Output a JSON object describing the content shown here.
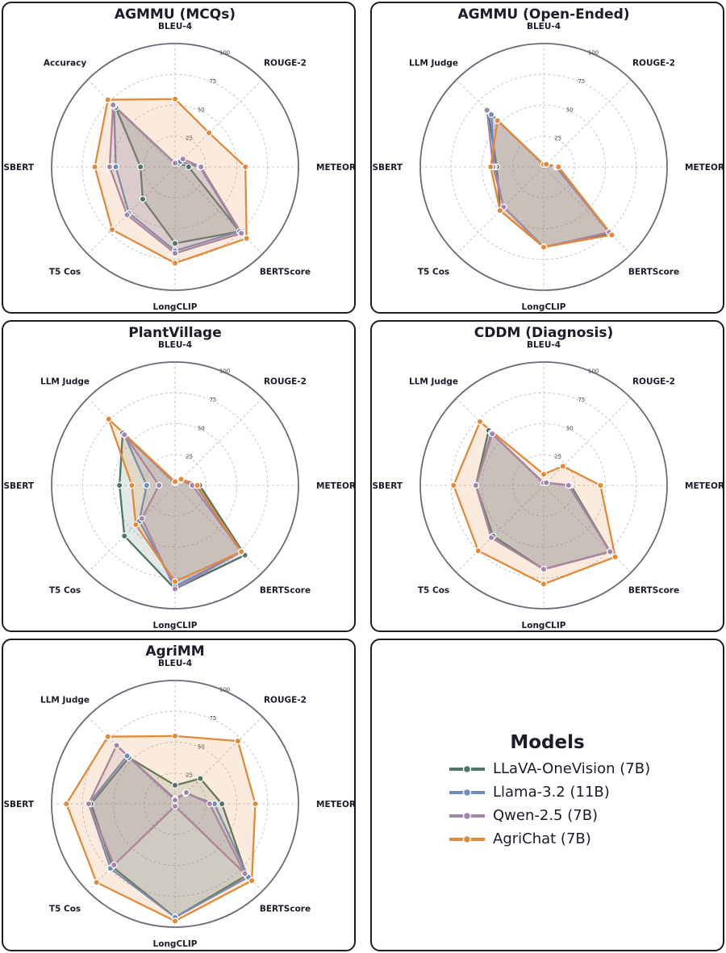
{
  "colors": {
    "LLaVA-OneVision (7B)": "#4e7563",
    "Llama-3.2 (11B)": "#6b8cbf",
    "Qwen-2.5 (7B)": "#a384ad",
    "AgriChat (7B)": "#e08a3c"
  },
  "chart_data": [
    {
      "type": "radar",
      "title": "AGMMU (MCQs)",
      "axes": [
        "BLEU-4",
        "ROUGE-2",
        "METEOR",
        "BERTScore",
        "LongCLIP",
        "T5 Cos",
        "SBERT",
        "Accuracy"
      ],
      "rlim": [
        0,
        100
      ],
      "rticks": [
        "25",
        "50",
        "75",
        "100"
      ],
      "series": [
        {
          "name": "LLaVA-OneVision (7B)",
          "values": [
            3,
            4,
            11,
            74,
            62,
            37,
            28,
            68
          ]
        },
        {
          "name": "Llama-3.2 (11B)",
          "values": [
            3,
            6,
            20,
            74,
            68,
            53,
            48,
            70
          ]
        },
        {
          "name": "Qwen-2.5 (7B)",
          "values": [
            3,
            9,
            21,
            76,
            70,
            55,
            53,
            71
          ]
        },
        {
          "name": "AgriChat (7B)",
          "values": [
            55,
            39,
            57,
            82,
            78,
            72,
            65,
            77
          ]
        }
      ]
    },
    {
      "type": "radar",
      "title": "AGMMU (Open-Ended)",
      "axes": [
        "BLEU-4",
        "ROUGE-2",
        "METEOR",
        "BERTScore",
        "LongCLIP",
        "T5 Cos",
        "SBERT",
        "LLM Judge"
      ],
      "rlim": [
        0,
        100
      ],
      "rticks": [
        "25",
        "50",
        "75",
        "100"
      ],
      "series": [
        {
          "name": "LLaVA-OneVision (7B)",
          "values": [
            2,
            3,
            12,
            77,
            65,
            50,
            38,
            64
          ]
        },
        {
          "name": "Llama-3.2 (11B)",
          "values": [
            2,
            3,
            10,
            75,
            65,
            46,
            40,
            60
          ]
        },
        {
          "name": "Qwen-2.5 (7B)",
          "values": [
            2,
            3,
            11,
            75,
            65,
            46,
            41,
            65
          ]
        },
        {
          "name": "AgriChat (7B)",
          "values": [
            2,
            3,
            12,
            78,
            65,
            50,
            43,
            53
          ]
        }
      ]
    },
    {
      "type": "radar",
      "title": "PlantVillage",
      "axes": [
        "BLEU-4",
        "ROUGE-2",
        "METEOR",
        "BERTScore",
        "LongCLIP",
        "T5 Cos",
        "SBERT",
        "LLM Judge"
      ],
      "rlim": [
        0,
        100
      ],
      "rticks": [
        "25",
        "50",
        "75",
        "100"
      ],
      "series": [
        {
          "name": "LLaVA-OneVision (7B)",
          "values": [
            2,
            7,
            20,
            80,
            84,
            58,
            45,
            60
          ]
        },
        {
          "name": "Llama-3.2 (11B)",
          "values": [
            2,
            6,
            17,
            76,
            82,
            41,
            23,
            58
          ]
        },
        {
          "name": "Qwen-2.5 (7B)",
          "values": [
            2,
            6,
            14,
            76,
            84,
            38,
            13,
            58
          ]
        },
        {
          "name": "AgriChat (7B)",
          "values": [
            3,
            7,
            18,
            76,
            78,
            45,
            35,
            76
          ]
        }
      ]
    },
    {
      "type": "radar",
      "title": "CDDM (Diagnosis)",
      "axes": [
        "BLEU-4",
        "ROUGE-2",
        "METEOR",
        "BERTScore",
        "LongCLIP",
        "T5 Cos",
        "SBERT",
        "LLM Judge"
      ],
      "rlim": [
        0,
        100
      ],
      "rticks": [
        "25",
        "50",
        "75",
        "100"
      ],
      "series": [
        {
          "name": "LLaVA-OneVision (7B)",
          "values": [
            2,
            3,
            22,
            76,
            68,
            58,
            55,
            63
          ]
        },
        {
          "name": "Llama-3.2 (11B)",
          "values": [
            2,
            3,
            21,
            76,
            68,
            60,
            55,
            60
          ]
        },
        {
          "name": "Qwen-2.5 (7B)",
          "values": [
            2,
            3,
            20,
            76,
            68,
            60,
            55,
            59
          ]
        },
        {
          "name": "AgriChat (7B)",
          "values": [
            9,
            22,
            46,
            82,
            80,
            75,
            73,
            73
          ]
        }
      ]
    },
    {
      "type": "radar",
      "title": "AgriMM",
      "axes": [
        "BLEU-4",
        "ROUGE-2",
        "METEOR",
        "BERTScore",
        "LongCLIP",
        "T5 Cos",
        "SBERT",
        "LLM Judge"
      ],
      "rlim": [
        0,
        100
      ],
      "rticks": [
        "25",
        "50",
        "75",
        "100"
      ],
      "series": [
        {
          "name": "LLaVA-OneVision (7B)",
          "values": [
            15,
            29,
            38,
            82,
            92,
            72,
            68,
            53
          ]
        },
        {
          "name": "Llama-3.2 (11B)",
          "values": [
            4,
            12,
            32,
            84,
            92,
            74,
            70,
            55
          ]
        },
        {
          "name": "Qwen-2.5 (7B)",
          "values": [
            3,
            13,
            28,
            80,
            2,
            70,
            70,
            67
          ]
        },
        {
          "name": "AgriChat (7B)",
          "values": [
            55,
            72,
            65,
            88,
            95,
            90,
            88,
            77
          ]
        }
      ]
    }
  ],
  "legend": {
    "title": "Models",
    "items": [
      "LLaVA-OneVision (7B)",
      "Llama-3.2 (11B)",
      "Qwen-2.5 (7B)",
      "AgriChat (7B)"
    ]
  }
}
